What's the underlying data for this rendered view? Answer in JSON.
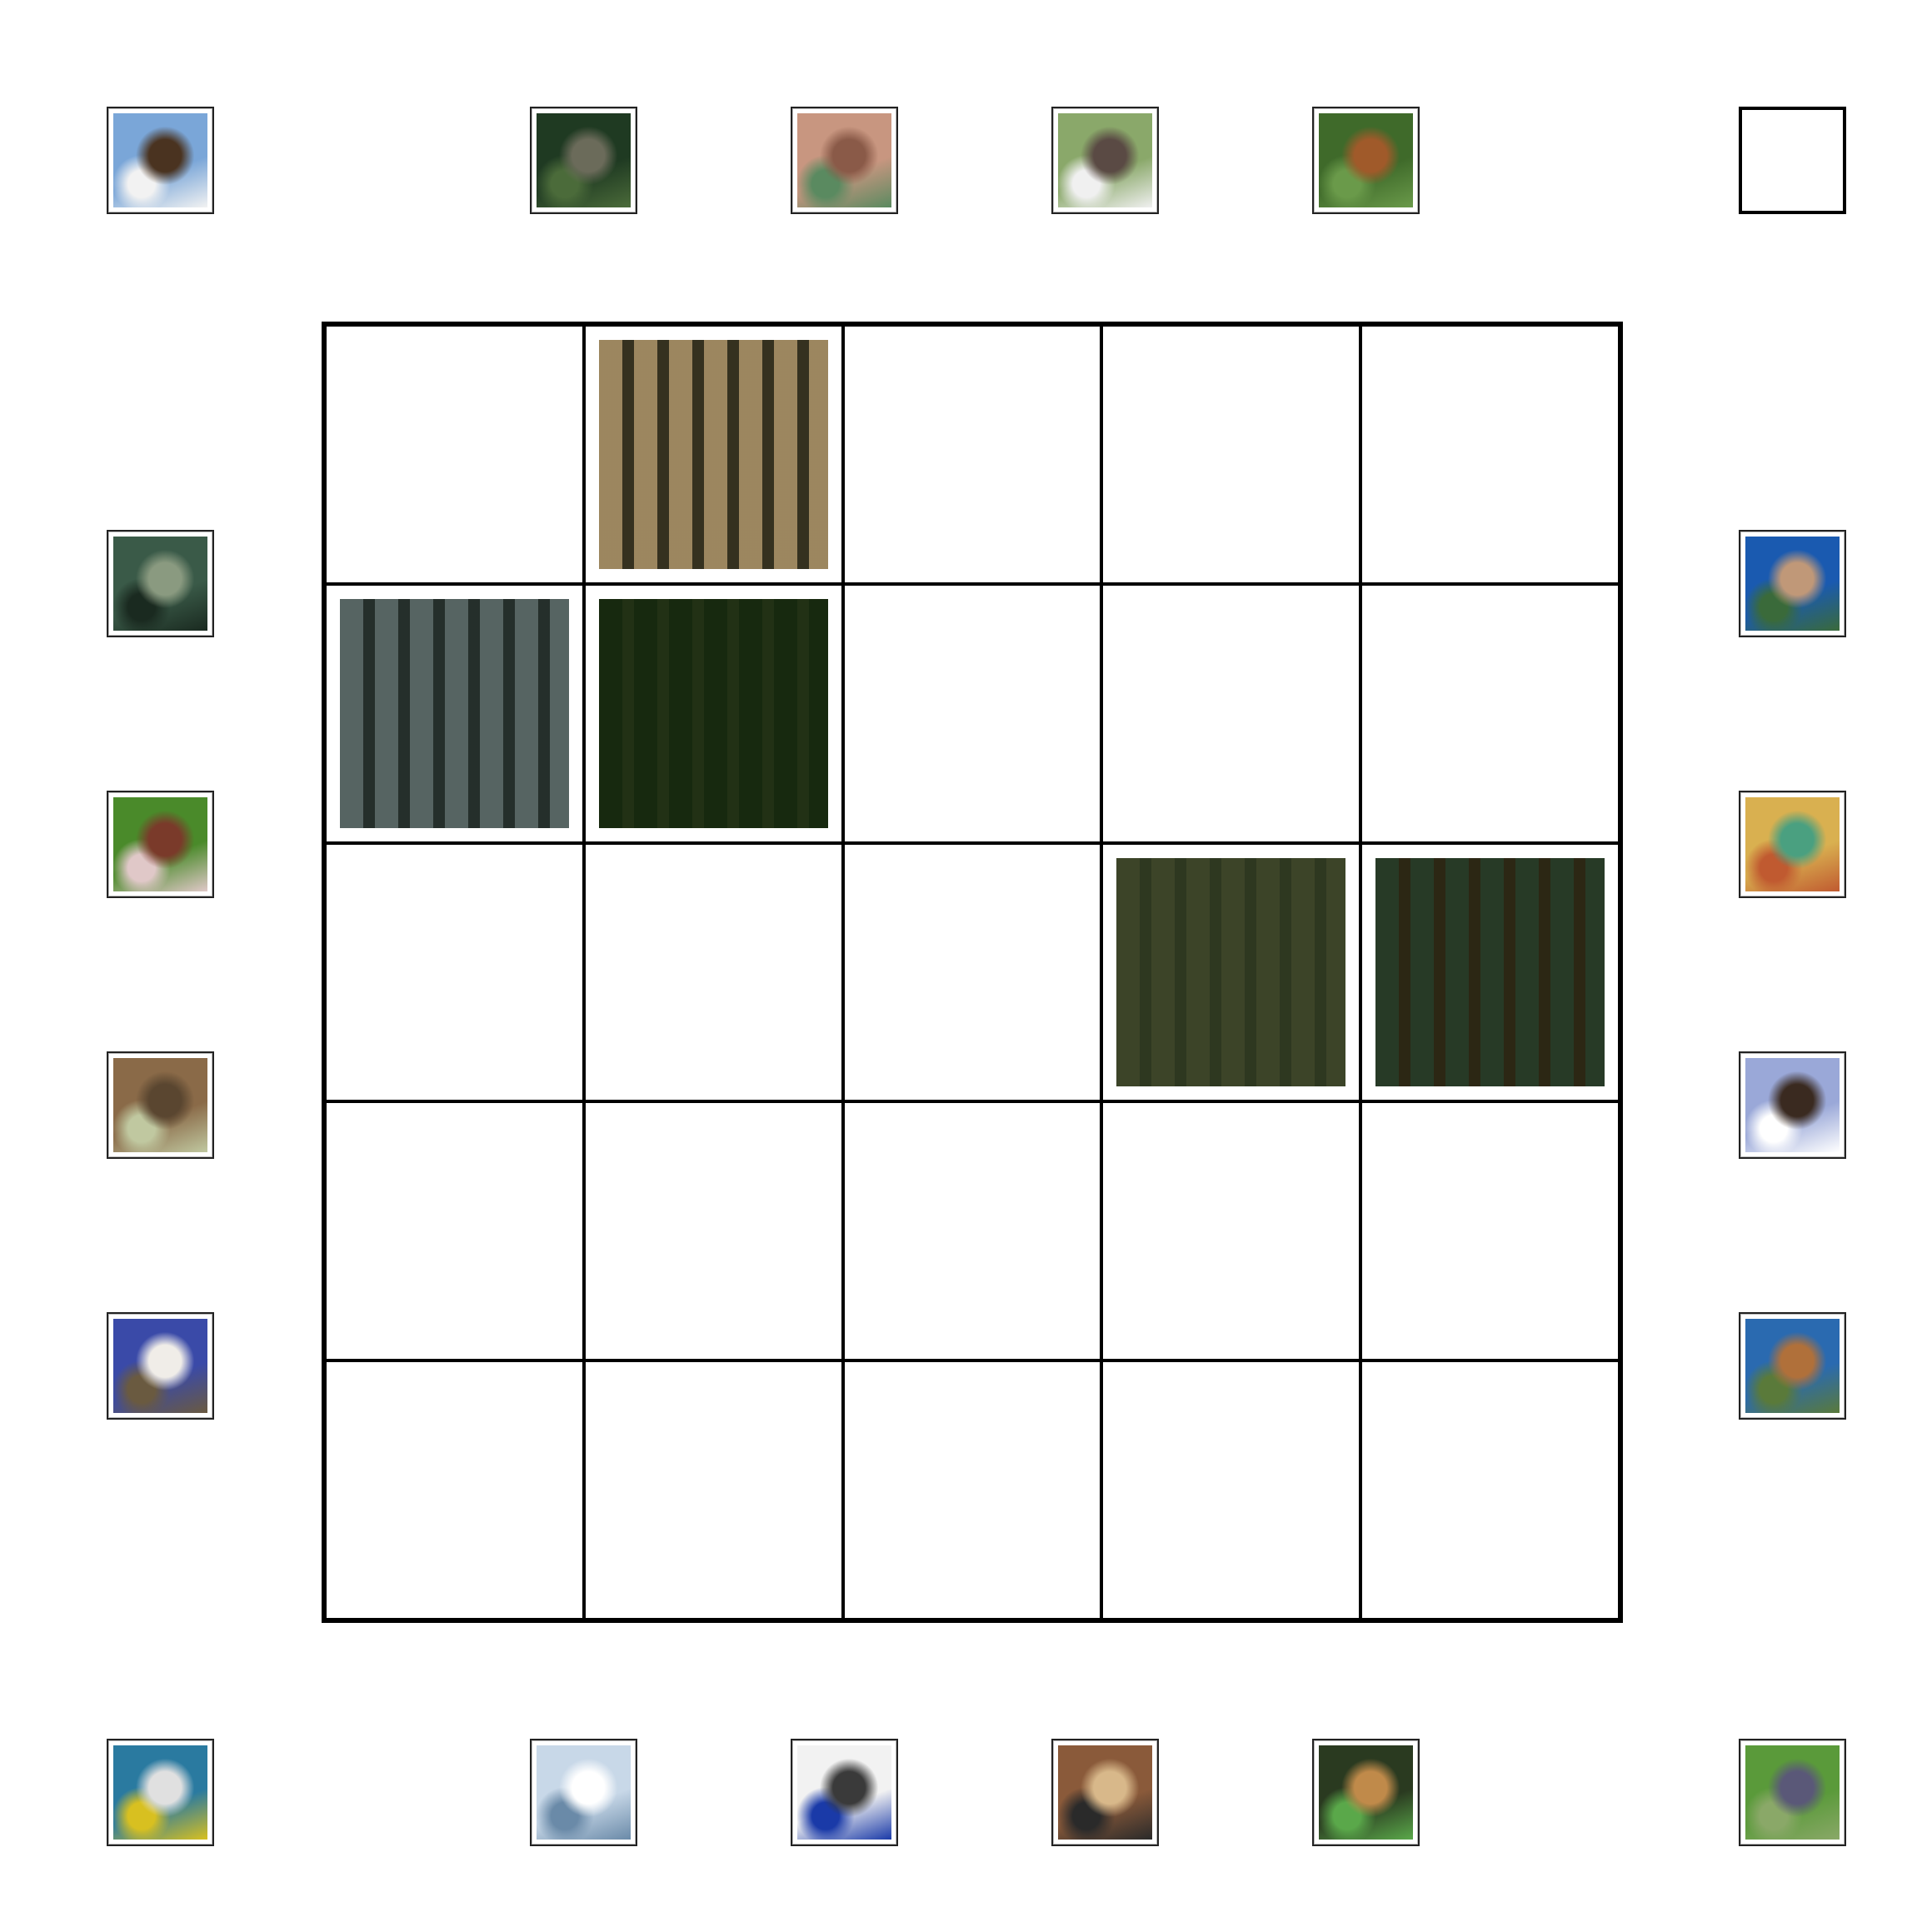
{
  "board": {
    "rows": 5,
    "cols": 5,
    "placed_tiles": [
      {
        "row": 0,
        "col": 1,
        "icon": "aerial-shrubland-image",
        "colors": [
          "#d9cbb0",
          "#4a4a3a",
          "#b7a98a"
        ]
      },
      {
        "row": 1,
        "col": 0,
        "icon": "aerial-building-rooftop-image",
        "colors": [
          "#6e7b7a",
          "#2f3a36",
          "#c7cfcc"
        ]
      },
      {
        "row": 1,
        "col": 1,
        "icon": "aerial-farm-fields-image",
        "colors": [
          "#5e7448",
          "#8a8b63",
          "#3f5a35"
        ]
      },
      {
        "row": 2,
        "col": 3,
        "icon": "aerial-green-farmland-image",
        "colors": [
          "#6f7b5e",
          "#55654a",
          "#8a8e6d"
        ]
      },
      {
        "row": 2,
        "col": 4,
        "icon": "aerial-residential-rooftops-image",
        "colors": [
          "#9ea4a8",
          "#b46e5a",
          "#3f5a3a"
        ]
      }
    ]
  },
  "tray": {
    "items": [
      {
        "icon": "eagle-image",
        "colors": [
          "#7aa6d8",
          "#4a3320",
          "#f2f2f2"
        ]
      },
      {
        "icon": "wolf-image",
        "colors": [
          "#1f3a22",
          "#6b6b5a",
          "#4b6b3a"
        ]
      },
      {
        "icon": "toad-image",
        "colors": [
          "#c89680",
          "#8a5a48",
          "#5a8a60"
        ]
      },
      {
        "icon": "hippo-image",
        "colors": [
          "#8aa86a",
          "#5a4a44",
          "#f0f0f0"
        ]
      },
      {
        "icon": "tiger-image",
        "colors": [
          "#3f6a2a",
          "#a05a2a",
          "#6a9a4a"
        ]
      },
      {
        "icon": "empty-slot",
        "colors": []
      },
      {
        "icon": "toad-image",
        "colors": [
          "#3a5a48",
          "#8a9a80",
          "#1a2a20"
        ]
      },
      {
        "icon": "kitten-on-rock-image",
        "colors": [
          "#1a5ab0",
          "#c09878",
          "#3a6a3a"
        ]
      },
      {
        "icon": "horses-image",
        "colors": [
          "#4a8a2a",
          "#7a3a2a",
          "#e0c8c8"
        ]
      },
      {
        "icon": "tree-frog-image",
        "colors": [
          "#d9b050",
          "#4aa080",
          "#c05a30"
        ]
      },
      {
        "icon": "bear-image",
        "colors": [
          "#8a6a48",
          "#5a4630",
          "#c0c8a0"
        ]
      },
      {
        "icon": "eagle-image",
        "colors": [
          "#9aa8d8",
          "#3a2a20",
          "#ffffff"
        ]
      },
      {
        "icon": "ram-image",
        "colors": [
          "#3a4aa8",
          "#f0ede8",
          "#6a5a40"
        ]
      },
      {
        "icon": "kangaroo-image",
        "colors": [
          "#2a6ab0",
          "#b0703a",
          "#5a7a3a"
        ]
      },
      {
        "icon": "shark-image",
        "colors": [
          "#2a7aa0",
          "#e0e0e0",
          "#d8c020"
        ]
      },
      {
        "icon": "polar-bear-image",
        "colors": [
          "#c8d8e8",
          "#ffffff",
          "#6a8aa8"
        ]
      },
      {
        "icon": "bee-image",
        "colors": [
          "#f2f2f2",
          "#3a3a3a",
          "#1a3aa8"
        ]
      },
      {
        "icon": "leopard-image",
        "colors": [
          "#8a5a3a",
          "#d8b88a",
          "#2a2a2a"
        ]
      },
      {
        "icon": "snake-image",
        "colors": [
          "#2a3a20",
          "#c08a4a",
          "#5aa84a"
        ]
      },
      {
        "icon": "hippo-image",
        "colors": [
          "#5a9a3a",
          "#5a5878",
          "#8aa868"
        ]
      }
    ]
  }
}
